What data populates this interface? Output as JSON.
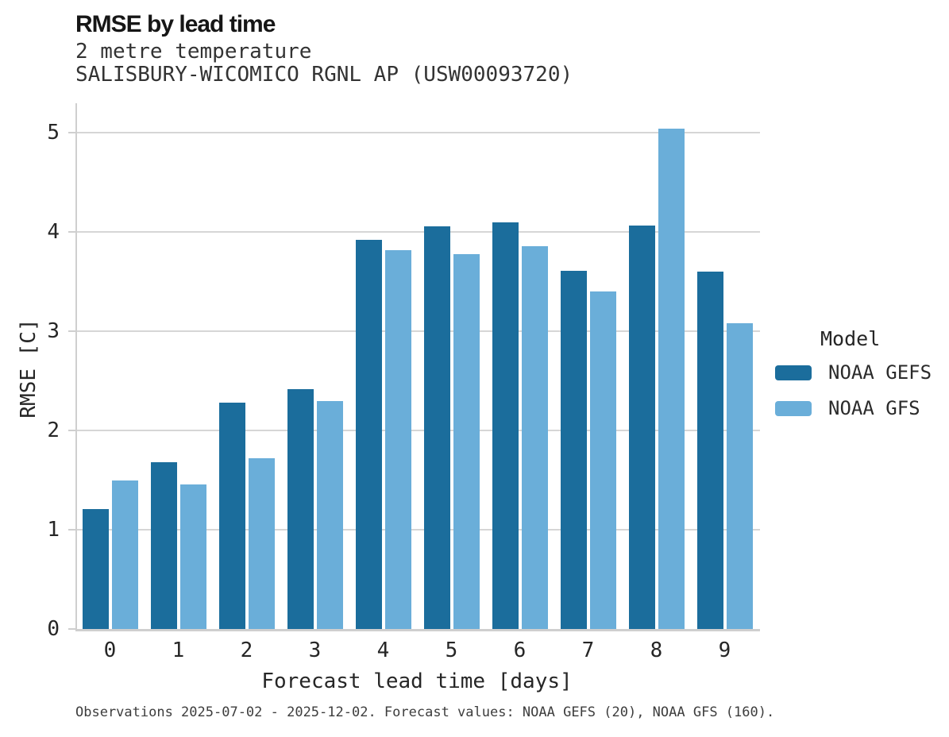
{
  "chart_data": {
    "type": "bar",
    "title": "RMSE by lead time",
    "subtitle1": "2 metre temperature",
    "subtitle2": "SALISBURY-WICOMICO RGNL AP (USW00093720)",
    "xlabel": "Forecast lead time [days]",
    "ylabel": "RMSE [C]",
    "legend_title": "Model",
    "legend_position": "right",
    "grid": true,
    "categories": [
      "0",
      "1",
      "2",
      "3",
      "4",
      "5",
      "6",
      "7",
      "8",
      "9"
    ],
    "yticks": [
      0,
      1,
      2,
      3,
      4,
      5
    ],
    "ylim": [
      0,
      5.3
    ],
    "series": [
      {
        "name": "NOAA GEFS",
        "color": "#1b6d9c",
        "values": [
          1.21,
          1.68,
          2.28,
          2.42,
          3.92,
          4.06,
          4.1,
          3.61,
          4.07,
          3.6
        ]
      },
      {
        "name": "NOAA GFS",
        "color": "#6aaed9",
        "values": [
          1.5,
          1.46,
          1.72,
          2.3,
          3.82,
          3.78,
          3.86,
          3.4,
          5.04,
          3.08
        ]
      }
    ],
    "caption": "Observations 2025-07-02 - 2025-12-02. Forecast values: NOAA GEFS (20), NOAA GFS (160)."
  },
  "colors": {
    "series_dark": "#1b6d9c",
    "series_light": "#6aaed9",
    "grid": "#d6d6d6",
    "spine": "#cfcfcf",
    "text": "#262626",
    "caption_text": "#3d3d3d"
  }
}
